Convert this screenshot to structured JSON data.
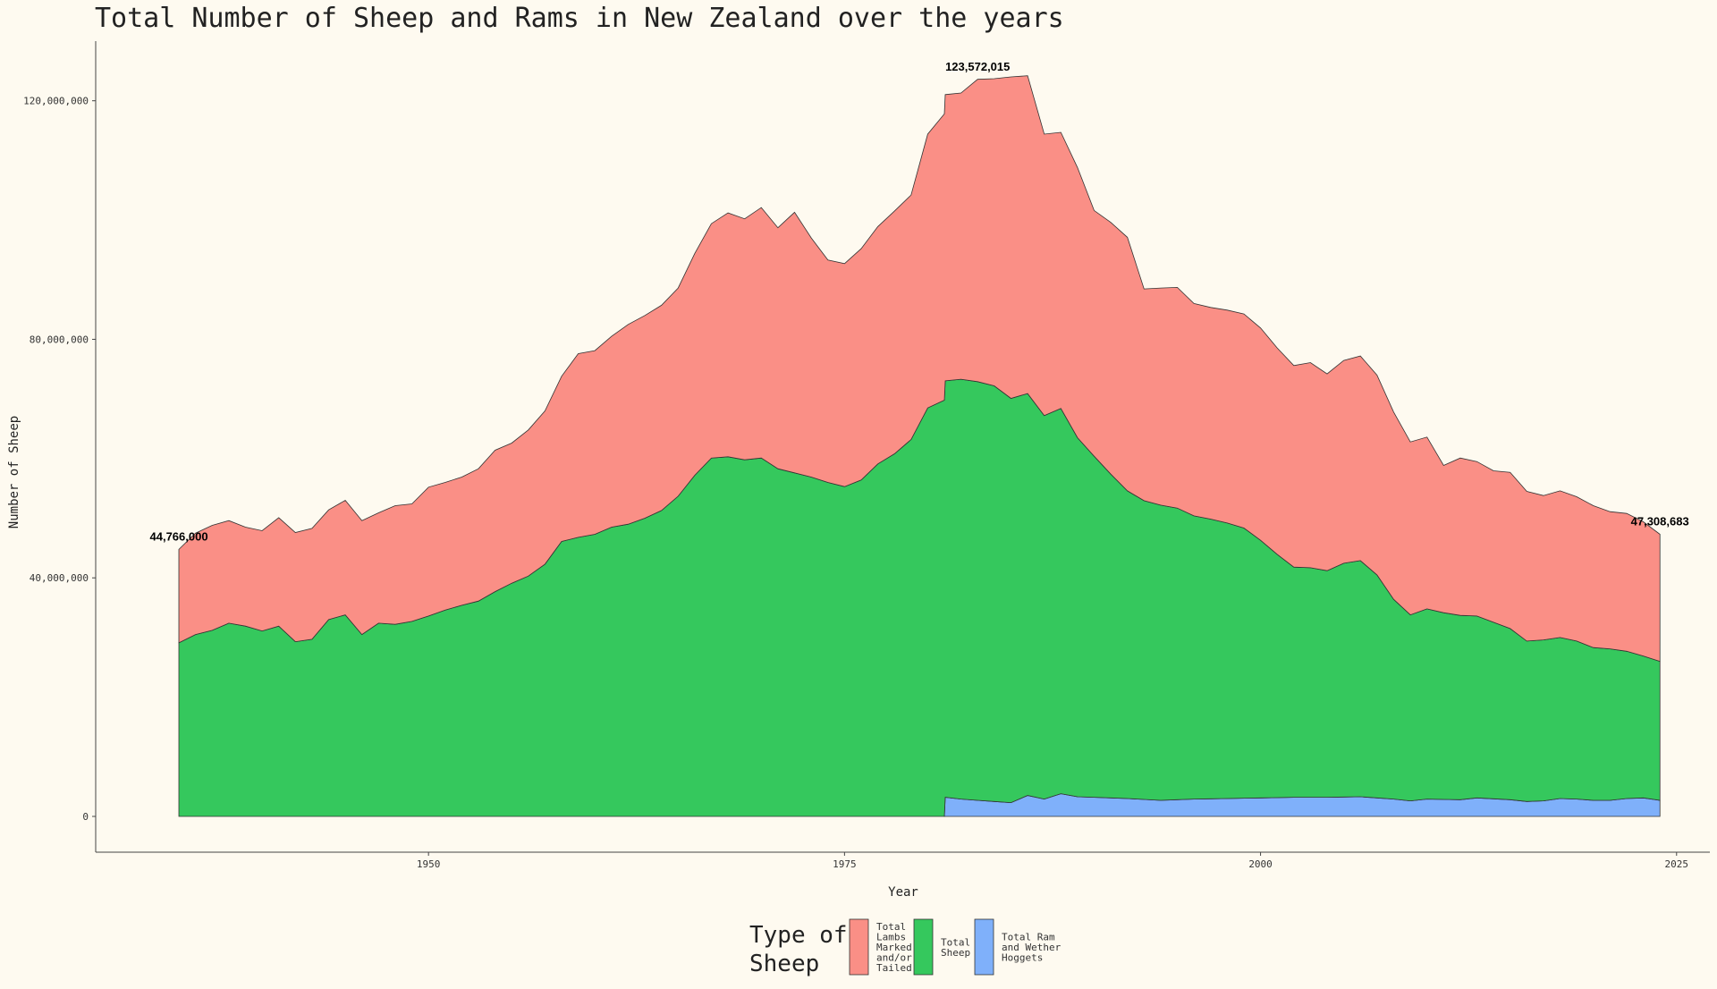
{
  "chart_data": {
    "type": "area",
    "stacked": true,
    "title": "Total Number of Sheep and Rams in New Zealand over the years",
    "xlabel": "Year",
    "ylabel": "Number of Sheep",
    "xlim": [
      1930,
      2027
    ],
    "ylim": [
      -6000000,
      130000000
    ],
    "x_ticks": [
      1950,
      1975,
      2000,
      2025
    ],
    "x_tick_labels": [
      "1950",
      "1975",
      "2000",
      "2025"
    ],
    "y_ticks": [
      0,
      40000000,
      80000000,
      120000000
    ],
    "y_tick_labels": [
      "0",
      "40,000,000",
      "80,000,000",
      "120,000,000"
    ],
    "grid": false,
    "legend_position": "bottom",
    "legend_title": "Type of Sheep",
    "series": [
      {
        "name": "Total Ram and Wether Hoggets",
        "color": "#7fb0fa",
        "x": [
          1981,
          1981.05,
          1982,
          1983,
          1984,
          1985,
          1986,
          1987,
          1988,
          1989,
          1990,
          1992,
          1994,
          1996,
          1998,
          2000,
          2002,
          2004,
          2006,
          2008,
          2009,
          2010,
          2012,
          2013,
          2015,
          2016,
          2017,
          2018,
          2019,
          2020,
          2021,
          2022,
          2023,
          2024
        ],
        "values": [
          0,
          3200000,
          2900000,
          2700000,
          2500000,
          2300000,
          3500000,
          2900000,
          3800000,
          3300000,
          3200000,
          3000000,
          2700000,
          2900000,
          3000000,
          3100000,
          3200000,
          3200000,
          3300000,
          2900000,
          2600000,
          2900000,
          2800000,
          3100000,
          2800000,
          2500000,
          2600000,
          3000000,
          2900000,
          2700000,
          2700000,
          3000000,
          3100000,
          2700000
        ]
      },
      {
        "name": "Total Sheep",
        "color": "#35c85d",
        "x": [
          1935,
          1936,
          1937,
          1938,
          1939,
          1940,
          1941,
          1942,
          1943,
          1944,
          1945,
          1946,
          1947,
          1948,
          1949,
          1950,
          1951,
          1952,
          1953,
          1954,
          1955,
          1956,
          1957,
          1958,
          1959,
          1960,
          1961,
          1962,
          1963,
          1964,
          1965,
          1966,
          1967,
          1968,
          1969,
          1970,
          1971,
          1972,
          1973,
          1974,
          1975,
          1976,
          1977,
          1978,
          1979,
          1980,
          1981,
          1982,
          1983,
          1984,
          1985,
          1986,
          1987,
          1988,
          1989,
          1990,
          1991,
          1992,
          1993,
          1994,
          1995,
          1996,
          1997,
          1998,
          1999,
          2000,
          2001,
          2002,
          2003,
          2004,
          2005,
          2006,
          2007,
          2008,
          2009,
          2010,
          2011,
          2012,
          2013,
          2014,
          2015,
          2016,
          2017,
          2018,
          2019,
          2020,
          2021,
          2022,
          2023,
          2024
        ],
        "values": [
          29100000,
          30500000,
          31200000,
          32400000,
          31900000,
          31100000,
          31900000,
          29300000,
          29700000,
          33000000,
          33800000,
          30500000,
          32400000,
          32200000,
          32700000,
          33600000,
          34600000,
          35400000,
          36100000,
          37700000,
          39100000,
          40300000,
          42300000,
          46100000,
          46800000,
          47300000,
          48500000,
          49000000,
          50000000,
          51300000,
          53700000,
          57200000,
          60100000,
          60300000,
          59800000,
          60100000,
          58300000,
          57600000,
          56900000,
          56000000,
          55300000,
          56400000,
          59100000,
          60800000,
          63200000,
          68500000,
          69800000,
          70400000,
          70200000,
          69700000,
          67800000,
          67400000,
          64300000,
          64600000,
          60200000,
          57200000,
          54300000,
          51600000,
          50100000,
          49500000,
          48900000,
          47500000,
          46900000,
          46200000,
          45300000,
          43200000,
          40800000,
          38600000,
          38500000,
          38000000,
          39200000,
          39600000,
          37400000,
          33500000,
          31200000,
          31900000,
          31300000,
          30900000,
          30500000,
          29600000,
          28700000,
          26900000,
          27000000,
          27000000,
          26500000,
          25600000,
          25400000,
          24700000,
          23800000,
          23300000
        ]
      },
      {
        "name": "Total Lambs Marked and/or Tailed",
        "color": "#fa8f86",
        "x": [
          1935,
          1936,
          1937,
          1938,
          1939,
          1940,
          1941,
          1942,
          1943,
          1944,
          1945,
          1946,
          1947,
          1948,
          1949,
          1950,
          1951,
          1952,
          1953,
          1954,
          1955,
          1956,
          1957,
          1958,
          1959,
          1960,
          1961,
          1962,
          1963,
          1964,
          1965,
          1966,
          1967,
          1968,
          1969,
          1970,
          1971,
          1972,
          1973,
          1974,
          1975,
          1976,
          1977,
          1978,
          1979,
          1980,
          1981,
          1982,
          1983,
          1984,
          1985,
          1986,
          1987,
          1988,
          1989,
          1990,
          1991,
          1992,
          1993,
          1994,
          1995,
          1996,
          1997,
          1998,
          1999,
          2000,
          2001,
          2002,
          2003,
          2004,
          2005,
          2006,
          2007,
          2008,
          2009,
          2010,
          2011,
          2012,
          2013,
          2014,
          2015,
          2016,
          2017,
          2018,
          2019,
          2020,
          2021,
          2022,
          2023,
          2024
        ],
        "values": [
          15666000,
          17000000,
          17600000,
          17200000,
          16600000,
          16800000,
          18200000,
          18300000,
          18600000,
          18400000,
          19200000,
          19100000,
          18500000,
          19900000,
          19700000,
          21600000,
          21400000,
          21500000,
          22200000,
          23700000,
          23500000,
          24500000,
          25700000,
          27700000,
          30800000,
          30800000,
          32000000,
          33500000,
          34000000,
          34400000,
          34900000,
          37200000,
          39300000,
          40900000,
          40400000,
          42000000,
          40400000,
          43700000,
          40100000,
          37300000,
          37400000,
          38800000,
          39800000,
          40700000,
          41000000,
          45900000,
          48000000,
          48000000,
          50700000,
          51500000,
          53900000,
          53300000,
          47200000,
          46300000,
          45300000,
          41200000,
          42200000,
          42500000,
          35500000,
          36400000,
          37000000,
          35600000,
          35500000,
          35700000,
          35900000,
          35600000,
          34600000,
          33800000,
          34400000,
          33000000,
          34000000,
          34300000,
          33500000,
          31400000,
          29000000,
          28800000,
          24700000,
          26400000,
          25900000,
          25400000,
          26200000,
          25100000,
          24200000,
          24600000,
          24200000,
          23800000,
          23000000,
          23100000,
          22500000,
          21308683
        ]
      }
    ],
    "annotations": [
      {
        "label": "44,766,000",
        "x": 1935,
        "y": 44766000
      },
      {
        "label": "123,572,015",
        "x": 1983,
        "y": 123572015
      },
      {
        "label": "47,308,683",
        "x": 2024,
        "y": 47308683
      }
    ]
  }
}
